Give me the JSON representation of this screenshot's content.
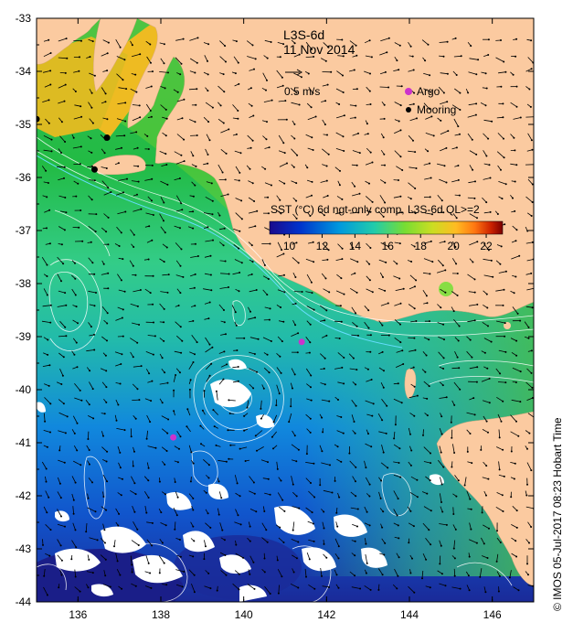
{
  "product": "L3S-6d",
  "date": "11 Nov 2014",
  "scale_arrow_label": "0.5 m/s",
  "legend": {
    "argo_label": "Argo",
    "mooring_label": "Mooring",
    "argo_color": "#cc33cc",
    "mooring_color": "#000000"
  },
  "colorbar": {
    "title": "SST (°C) 6d ngt-only comp, L3S-6d QL>=2",
    "ticks": [
      "10",
      "12",
      "14",
      "16",
      "18",
      "20",
      "22"
    ],
    "range": [
      8.8,
      23
    ],
    "colors": [
      "#1a0a8c",
      "#0033cc",
      "#0099dd",
      "#22ccaa",
      "#77dd33",
      "#ccdd22",
      "#ffbb22",
      "#ff7711",
      "#cc2200",
      "#7a0000"
    ]
  },
  "credit": "© IMOS 05-Jul-2017 08:23 Hobart Time",
  "axes": {
    "x_ticks": [
      "136",
      "138",
      "140",
      "142",
      "144",
      "146"
    ],
    "y_ticks": [
      "-33",
      "-34",
      "-35",
      "-36",
      "-37",
      "-38",
      "-39",
      "-40",
      "-41",
      "-42",
      "-43",
      "-44"
    ],
    "lon_range": [
      135,
      147
    ],
    "lat_range": [
      -44,
      -33
    ]
  },
  "colors": {
    "land": "#fbcaa0",
    "background": "#ffffff"
  },
  "markers": {
    "argo": [
      {
        "lon": 141.4,
        "lat": -39.1
      },
      {
        "lon": 138.3,
        "lat": -40.9
      }
    ],
    "mooring": [
      {
        "lon": 135.0,
        "lat": -34.9
      },
      {
        "lon": 136.7,
        "lat": -35.25
      },
      {
        "lon": 136.4,
        "lat": -35.85
      }
    ]
  }
}
